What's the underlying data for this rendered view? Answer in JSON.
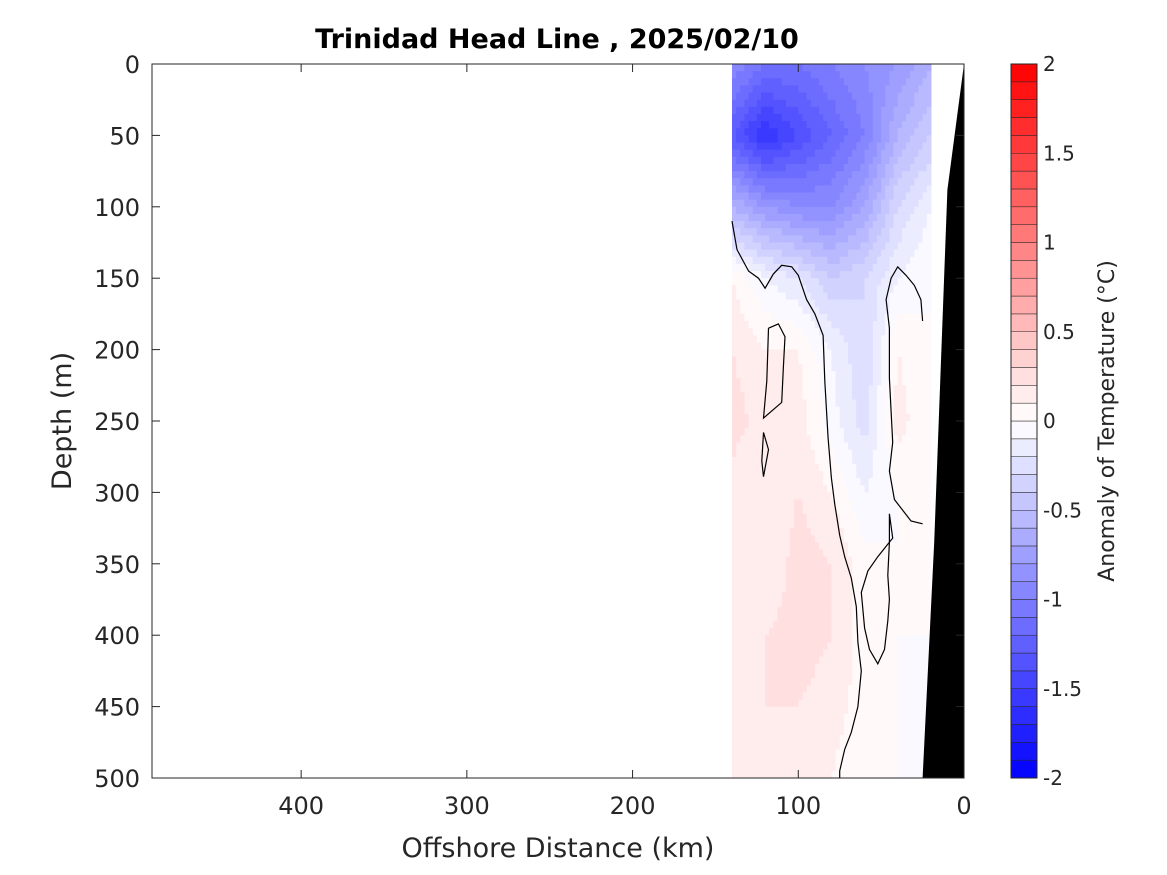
{
  "chart_data": {
    "type": "heatmap",
    "title": "Trinidad Head Line , 2025/02/10",
    "xlabel": "Offshore Distance (km)",
    "ylabel": "Depth (m)",
    "xlim": [
      490,
      0
    ],
    "ylim": [
      0,
      500
    ],
    "x_reversed": true,
    "y_reversed": true,
    "xticks": [
      400,
      300,
      200,
      100,
      0
    ],
    "yticks": [
      0,
      50,
      100,
      150,
      200,
      250,
      300,
      350,
      400,
      450,
      500
    ],
    "colorbar": {
      "label": "Anomaly of Temperature (°C)",
      "range": [
        -2,
        2
      ],
      "levels": 40,
      "ticks": [
        2,
        1.5,
        1,
        0.5,
        0,
        -0.5,
        -1,
        -1.5,
        -2
      ],
      "tick_labels": [
        "2",
        "1.5",
        "1",
        "0.5",
        "0",
        "-0.5",
        "-1",
        "-1.5",
        "-2"
      ],
      "low_color": "#0000ff",
      "mid_color": "#ffffff",
      "high_color": "#ff0000"
    },
    "data_extent": {
      "x_min": 20,
      "x_max": 140,
      "depth_min": 0,
      "depth_max": 500
    },
    "grid": {
      "x": [
        140,
        120,
        100,
        80,
        60,
        40,
        20
      ],
      "depth": [
        0,
        50,
        100,
        150,
        200,
        250,
        300,
        350,
        400,
        450,
        500
      ],
      "anomaly": [
        [
          -0.9,
          -1.1,
          -1.1,
          -1.0,
          -0.9,
          -0.8,
          -0.6
        ],
        [
          -1.3,
          -1.6,
          -1.4,
          -1.2,
          -1.0,
          -0.6,
          -0.4
        ],
        [
          -0.6,
          -0.8,
          -0.9,
          -0.9,
          -0.7,
          -0.3,
          -0.1
        ],
        [
          0.1,
          -0.1,
          -0.2,
          -0.4,
          -0.3,
          -0.1,
          0.0
        ],
        [
          0.2,
          0.1,
          0.1,
          -0.1,
          -0.3,
          0.1,
          0.0
        ],
        [
          0.25,
          0.15,
          0.15,
          -0.05,
          -0.25,
          0.15,
          0.0
        ],
        [
          0.15,
          0.1,
          0.2,
          0.1,
          -0.1,
          0.0,
          0.0
        ],
        [
          0.2,
          0.1,
          0.25,
          0.2,
          0.05,
          0.0,
          0.0
        ],
        [
          0.15,
          0.2,
          0.25,
          0.2,
          0.05,
          0.0,
          0.0
        ],
        [
          0.1,
          0.2,
          0.2,
          0.15,
          0.05,
          0.0,
          -0.05
        ],
        [
          0.1,
          0.15,
          0.2,
          0.1,
          0.0,
          0.0,
          -0.05
        ]
      ]
    },
    "zero_contour": {
      "level": 0,
      "main": [
        [
          140,
          110
        ],
        [
          137,
          130
        ],
        [
          130,
          145
        ],
        [
          124,
          150
        ],
        [
          120,
          157
        ],
        [
          115,
          147
        ],
        [
          110,
          141
        ],
        [
          104,
          142
        ],
        [
          100,
          148
        ],
        [
          95,
          165
        ],
        [
          90,
          175
        ],
        [
          85,
          190
        ],
        [
          84,
          222
        ],
        [
          82,
          262
        ],
        [
          80,
          290
        ],
        [
          78,
          308
        ],
        [
          75,
          330
        ],
        [
          72,
          345
        ],
        [
          68,
          360
        ],
        [
          65,
          380
        ],
        [
          64,
          405
        ],
        [
          62,
          425
        ],
        [
          64,
          450
        ],
        [
          68,
          468
        ],
        [
          72,
          480
        ],
        [
          75,
          495
        ],
        [
          75,
          500
        ]
      ],
      "closed": [
        [
          [
            118,
            185
          ],
          [
            112,
            182
          ],
          [
            108,
            191
          ],
          [
            109,
            212
          ],
          [
            110,
            237
          ],
          [
            121,
            248
          ],
          [
            119,
            222
          ],
          [
            118,
            185
          ]
        ],
        [
          [
            121,
            258
          ],
          [
            118,
            270
          ],
          [
            121,
            289
          ],
          [
            122,
            278
          ],
          [
            121,
            258
          ]
        ],
        [
          [
            45,
            315
          ],
          [
            43,
            332
          ],
          [
            52,
            345
          ],
          [
            58,
            355
          ],
          [
            62,
            370
          ],
          [
            60,
            395
          ],
          [
            57,
            410
          ],
          [
            52,
            420
          ],
          [
            48,
            410
          ],
          [
            46,
            390
          ],
          [
            45,
            375
          ],
          [
            46,
            358
          ],
          [
            45,
            335
          ],
          [
            45,
            315
          ]
        ]
      ],
      "right": [
        [
          25,
          180
        ],
        [
          26,
          165
        ],
        [
          30,
          155
        ],
        [
          35,
          148
        ],
        [
          40,
          142
        ],
        [
          44,
          150
        ],
        [
          47,
          165
        ],
        [
          45,
          185
        ],
        [
          45,
          220
        ],
        [
          43,
          265
        ],
        [
          45,
          285
        ],
        [
          42,
          305
        ],
        [
          32,
          320
        ],
        [
          25,
          322
        ]
      ]
    },
    "bathymetry": [
      [
        0,
        0
      ],
      [
        0,
        500
      ],
      [
        25,
        500
      ],
      [
        18,
        335
      ],
      [
        10,
        88
      ],
      [
        0,
        0
      ]
    ]
  }
}
